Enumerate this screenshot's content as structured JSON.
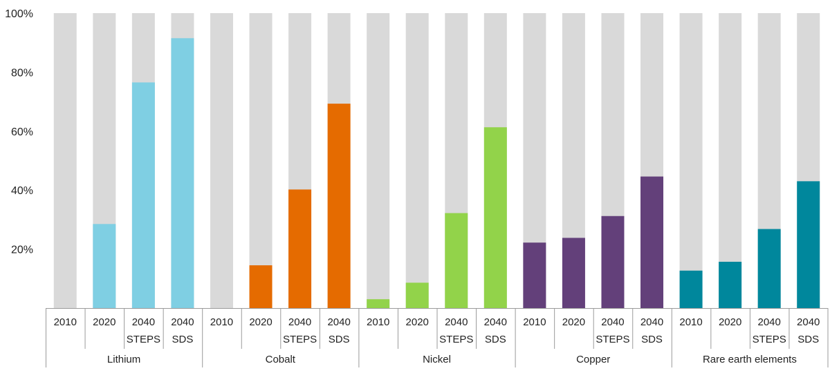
{
  "chart_data": {
    "type": "bar",
    "stacked_background": true,
    "title": "",
    "xlabel": "",
    "ylabel": "",
    "ylim": [
      0,
      100
    ],
    "y_ticks": [
      {
        "value": 20,
        "label": "20%"
      },
      {
        "value": 40,
        "label": "40%"
      },
      {
        "value": 60,
        "label": "60%"
      },
      {
        "value": 80,
        "label": "80%"
      },
      {
        "value": 100,
        "label": "100%"
      }
    ],
    "background_color": "#d9d9d9",
    "groups": [
      {
        "name": "Lithium",
        "color": "#7fcfe3",
        "bars": [
          {
            "line1": "2010",
            "line2": "",
            "value": 0
          },
          {
            "line1": "2020",
            "line2": "",
            "value": 28.5
          },
          {
            "line1": "2040",
            "line2": "STEPS",
            "value": 76.5
          },
          {
            "line1": "2040",
            "line2": "SDS",
            "value": 91.5
          }
        ]
      },
      {
        "name": "Cobalt",
        "color": "#e56b00",
        "bars": [
          {
            "line1": "2010",
            "line2": "",
            "value": 0
          },
          {
            "line1": "2020",
            "line2": "",
            "value": 14.5
          },
          {
            "line1": "2040",
            "line2": "STEPS",
            "value": 40.2
          },
          {
            "line1": "2040",
            "line2": "SDS",
            "value": 69.3
          }
        ]
      },
      {
        "name": "Nickel",
        "color": "#92d34a",
        "bars": [
          {
            "line1": "2010",
            "line2": "",
            "value": 3
          },
          {
            "line1": "2020",
            "line2": "",
            "value": 8.6
          },
          {
            "line1": "2040",
            "line2": "STEPS",
            "value": 32.2
          },
          {
            "line1": "2040",
            "line2": "SDS",
            "value": 61.3
          }
        ]
      },
      {
        "name": "Copper",
        "color": "#63407a",
        "bars": [
          {
            "line1": "2010",
            "line2": "",
            "value": 22.2
          },
          {
            "line1": "2020",
            "line2": "",
            "value": 23.8
          },
          {
            "line1": "2040",
            "line2": "STEPS",
            "value": 31.2
          },
          {
            "line1": "2040",
            "line2": "SDS",
            "value": 44.6
          }
        ]
      },
      {
        "name": "Rare earth elements",
        "color": "#00879c",
        "bars": [
          {
            "line1": "2010",
            "line2": "",
            "value": 12.7
          },
          {
            "line1": "2020",
            "line2": "",
            "value": 15.7
          },
          {
            "line1": "2040",
            "line2": "STEPS",
            "value": 26.8
          },
          {
            "line1": "2040",
            "line2": "SDS",
            "value": 43
          }
        ]
      }
    ]
  }
}
